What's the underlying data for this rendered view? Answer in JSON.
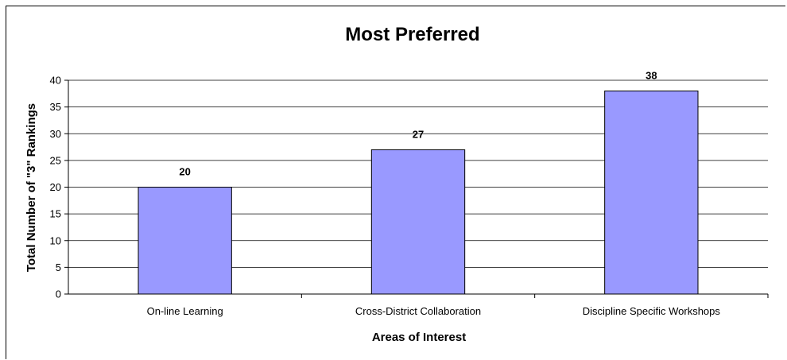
{
  "chart_data": {
    "type": "bar",
    "title": "Most Preferred",
    "xlabel": "Areas of Interest",
    "ylabel": "Total Number of \"3\" Rankings",
    "categories": [
      "On-line Learning",
      "Cross-District Collaboration",
      "Discipline Specific Workshops"
    ],
    "values": [
      20,
      27,
      38
    ],
    "data_labels": [
      "20",
      "27",
      "38"
    ],
    "ylim": [
      0,
      40
    ],
    "yticks": [
      0,
      5,
      10,
      15,
      20,
      25,
      30,
      35,
      40
    ],
    "ytick_labels": [
      "0",
      "5",
      "10",
      "15",
      "20",
      "25",
      "30",
      "35",
      "40"
    ],
    "grid": true,
    "legend": "none",
    "colors": {
      "bar_fill": "#9999ff",
      "bar_stroke": "#000000",
      "grid": "#000000",
      "axis": "#000000"
    }
  }
}
